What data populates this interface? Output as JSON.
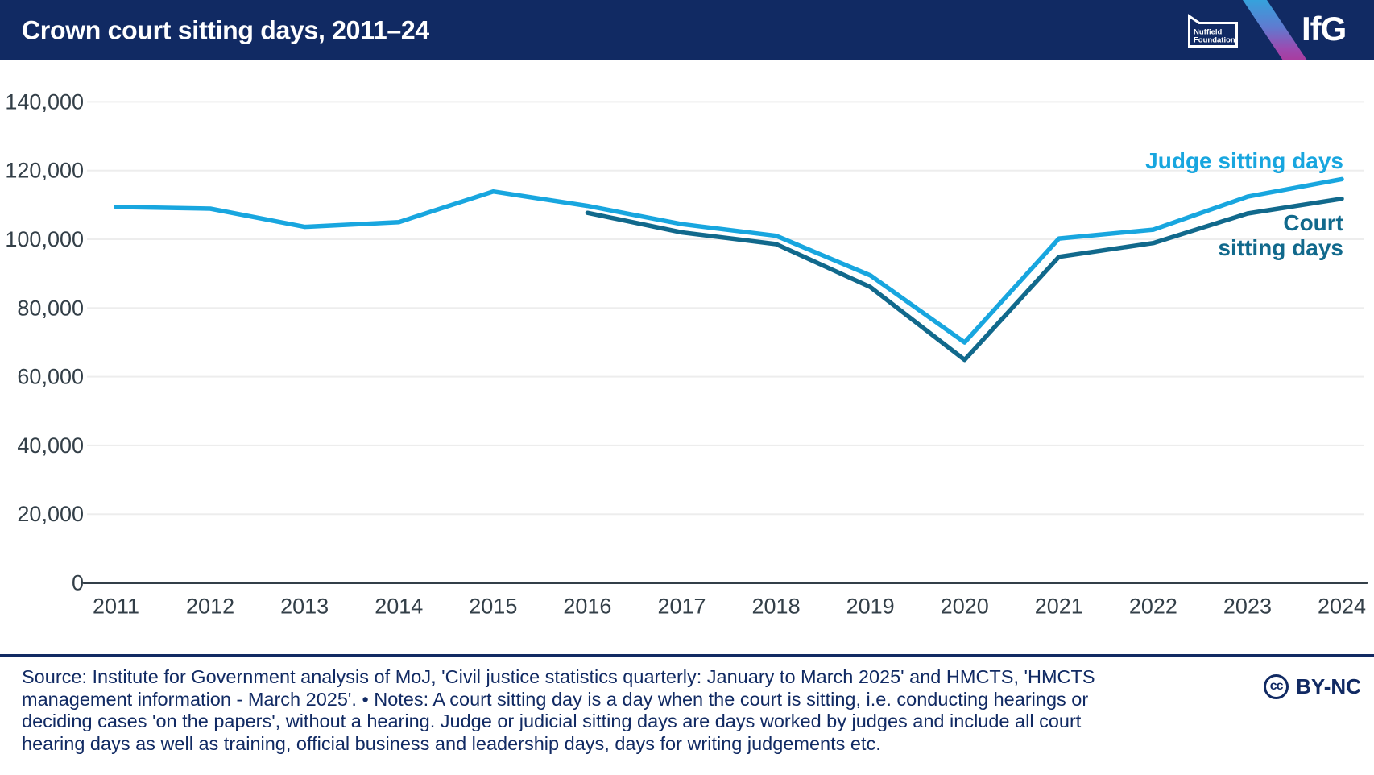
{
  "header": {
    "title": "Crown court sitting days, 2011–24",
    "nuffield_logo_line1": "Nuffield",
    "nuffield_logo_line2": "Foundation",
    "ifg_logo": "IfG"
  },
  "chart_data": {
    "type": "line",
    "title": "Crown court sitting days, 2011–24",
    "x": [
      2011,
      2012,
      2013,
      2014,
      2015,
      2016,
      2017,
      2018,
      2019,
      2020,
      2021,
      2022,
      2023,
      2024
    ],
    "series": [
      {
        "name": "Judge sitting days",
        "color": "#18a6df",
        "values": [
          109400,
          108900,
          103600,
          105000,
          113900,
          109700,
          104400,
          101000,
          89500,
          70000,
          100200,
          102800,
          112400,
          117500
        ]
      },
      {
        "name": "Court sitting days",
        "color": "#11698c",
        "values": [
          null,
          null,
          null,
          null,
          null,
          107700,
          102000,
          98600,
          86100,
          64900,
          94900,
          98900,
          107500,
          111800
        ]
      }
    ],
    "ylim": [
      0,
      140000
    ],
    "yticks": [
      {
        "value": 0,
        "label": "0"
      },
      {
        "value": 20000,
        "label": "20,000"
      },
      {
        "value": 40000,
        "label": "40,000"
      },
      {
        "value": 60000,
        "label": "60,000"
      },
      {
        "value": 80000,
        "label": "80,000"
      },
      {
        "value": 100000,
        "label": "100,000"
      },
      {
        "value": 120000,
        "label": "120,000"
      },
      {
        "value": 140000,
        "label": "140,000"
      }
    ],
    "grid": "horizontal",
    "gridline_color": "#ededed",
    "axis_color": "#333f48",
    "legend_position": "inline-annotations",
    "annotations": {
      "judge": "Judge sitting days",
      "court_line1": "Court",
      "court_line2": "sitting days"
    }
  },
  "footer": {
    "lines": [
      "Source: Institute for Government analysis of MoJ, 'Civil justice statistics quarterly: January to March 2025' and HMCTS, 'HMCTS",
      "management information - March 2025'. • Notes: A court sitting day is a day when the court is sitting, i.e. conducting hearings or",
      "deciding cases 'on the papers', without a hearing. Judge or judicial sitting days are days worked by judges and include all court",
      "hearing days as well as training, official business and leadership days, days for writing judgements etc."
    ],
    "cc_glyph": "cc",
    "license_label": "BY-NC"
  }
}
